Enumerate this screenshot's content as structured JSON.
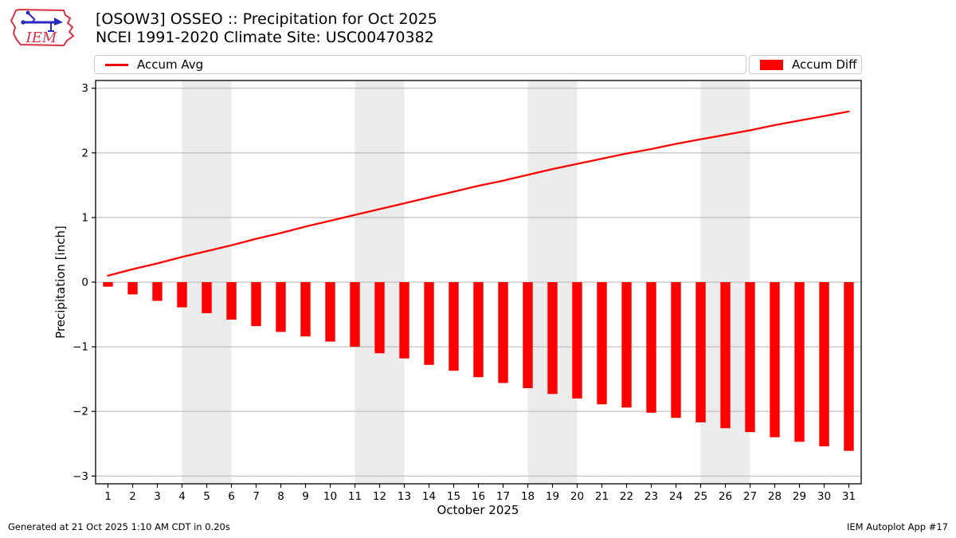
{
  "logo": {
    "text": "IEM"
  },
  "chart_data": {
    "type": "bar",
    "title": "[OSOW3] OSSEO :: Precipitation for Oct 2025",
    "subtitle": "NCEI 1991-2020 Climate Site: USC00470382",
    "xlabel": "October 2025",
    "ylabel": "Precipitation [inch]",
    "x": [
      1,
      2,
      3,
      4,
      5,
      6,
      7,
      8,
      9,
      10,
      11,
      12,
      13,
      14,
      15,
      16,
      17,
      18,
      19,
      20,
      21,
      22,
      23,
      24,
      25,
      26,
      27,
      28,
      29,
      30,
      31
    ],
    "series": [
      {
        "name": "Accum Avg",
        "type": "line",
        "color": "#ff0000",
        "values": [
          0.1,
          0.2,
          0.29,
          0.39,
          0.48,
          0.57,
          0.67,
          0.76,
          0.86,
          0.95,
          1.04,
          1.13,
          1.22,
          1.31,
          1.4,
          1.49,
          1.57,
          1.66,
          1.75,
          1.83,
          1.91,
          1.99,
          2.06,
          2.14,
          2.21,
          2.28,
          2.35,
          2.43,
          2.5,
          2.57,
          2.64
        ]
      },
      {
        "name": "Accum Diff",
        "type": "bar",
        "color": "#ff0000",
        "values": [
          -0.07,
          -0.19,
          -0.29,
          -0.39,
          -0.48,
          -0.58,
          -0.68,
          -0.77,
          -0.84,
          -0.92,
          -1.0,
          -1.1,
          -1.18,
          -1.28,
          -1.37,
          -1.47,
          -1.56,
          -1.64,
          -1.73,
          -1.8,
          -1.89,
          -1.94,
          -2.02,
          -2.1,
          -2.17,
          -2.26,
          -2.32,
          -2.4,
          -2.47,
          -2.54,
          -2.61
        ]
      }
    ],
    "ylim": [
      -3.12,
      3.12
    ],
    "yticks": [
      3,
      2,
      1,
      0,
      -1,
      -2,
      -3
    ],
    "grid": true,
    "legend_position": "top",
    "weekend_bands": [
      [
        3.5,
        5.5
      ],
      [
        10.5,
        12.5
      ],
      [
        17.5,
        19.5
      ],
      [
        24.5,
        26.5
      ]
    ]
  },
  "footer": {
    "generated": "Generated at 21 Oct 2025 1:10 AM CDT in 0.20s",
    "app": "IEM Autoplot App #17"
  },
  "colors": {
    "line": "#ff0000",
    "bar": "#ff0000",
    "grid": "#b3b3b3",
    "band": "#ececec",
    "spine": "#000000",
    "legend_border": "#cccccc",
    "logo_red": "#d63343",
    "logo_blue": "#2a2ac0"
  }
}
